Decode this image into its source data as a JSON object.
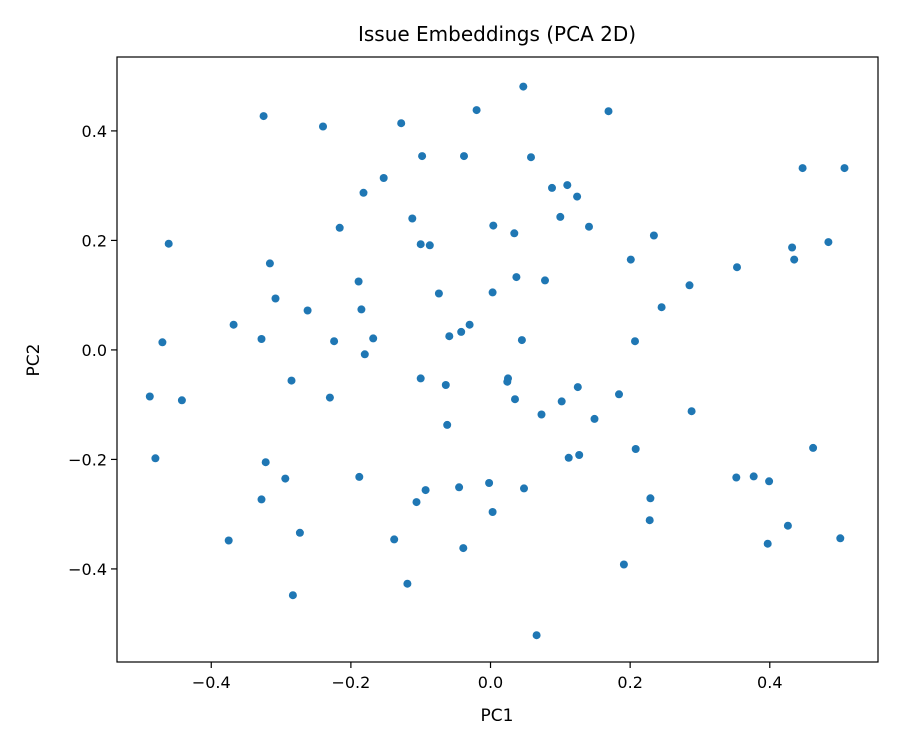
{
  "chart_data": {
    "type": "scatter",
    "title": "Issue Embeddings (PCA 2D)",
    "xlabel": "PC1",
    "ylabel": "PC2",
    "xlim": [
      -0.535,
      0.555
    ],
    "ylim": [
      -0.57,
      0.535
    ],
    "x_ticks": [
      -0.4,
      -0.2,
      0.0,
      0.2,
      0.4
    ],
    "y_ticks": [
      -0.4,
      -0.2,
      0.0,
      0.2,
      0.4
    ],
    "x_tick_labels": [
      "−0.4",
      "−0.2",
      "0.0",
      "0.2",
      "0.4"
    ],
    "y_tick_labels": [
      "−0.4",
      "−0.2",
      "0.0",
      "0.2",
      "0.4"
    ],
    "grid": false,
    "legend": "none",
    "marker_color": "#1f77b4",
    "points": [
      [
        0.047,
        0.481
      ],
      [
        -0.02,
        0.438
      ],
      [
        0.169,
        0.436
      ],
      [
        -0.325,
        0.427
      ],
      [
        -0.24,
        0.408
      ],
      [
        -0.128,
        0.414
      ],
      [
        -0.098,
        0.354
      ],
      [
        -0.038,
        0.354
      ],
      [
        0.058,
        0.352
      ],
      [
        0.447,
        0.332
      ],
      [
        0.507,
        0.332
      ],
      [
        -0.153,
        0.314
      ],
      [
        -0.182,
        0.287
      ],
      [
        0.088,
        0.296
      ],
      [
        0.11,
        0.301
      ],
      [
        0.124,
        0.28
      ],
      [
        -0.112,
        0.24
      ],
      [
        0.1,
        0.243
      ],
      [
        0.141,
        0.225
      ],
      [
        -0.216,
        0.223
      ],
      [
        0.004,
        0.227
      ],
      [
        0.034,
        0.213
      ],
      [
        0.234,
        0.209
      ],
      [
        -0.461,
        0.194
      ],
      [
        -0.1,
        0.193
      ],
      [
        -0.087,
        0.191
      ],
      [
        0.432,
        0.187
      ],
      [
        0.484,
        0.197
      ],
      [
        -0.316,
        0.158
      ],
      [
        0.201,
        0.165
      ],
      [
        0.435,
        0.165
      ],
      [
        0.353,
        0.151
      ],
      [
        -0.189,
        0.125
      ],
      [
        0.037,
        0.133
      ],
      [
        0.078,
        0.127
      ],
      [
        0.285,
        0.118
      ],
      [
        -0.074,
        0.103
      ],
      [
        0.003,
        0.105
      ],
      [
        -0.308,
        0.094
      ],
      [
        -0.262,
        0.072
      ],
      [
        -0.185,
        0.074
      ],
      [
        0.245,
        0.078
      ],
      [
        -0.368,
        0.046
      ],
      [
        -0.03,
        0.046
      ],
      [
        -0.042,
        0.033
      ],
      [
        -0.059,
        0.025
      ],
      [
        -0.328,
        0.02
      ],
      [
        -0.224,
        0.016
      ],
      [
        -0.168,
        0.021
      ],
      [
        0.045,
        0.018
      ],
      [
        0.207,
        0.016
      ],
      [
        -0.47,
        0.014
      ],
      [
        -0.18,
        -0.008
      ],
      [
        -0.1,
        -0.052
      ],
      [
        -0.285,
        -0.056
      ],
      [
        -0.064,
        -0.064
      ],
      [
        0.025,
        -0.052
      ],
      [
        0.024,
        -0.058
      ],
      [
        0.125,
        -0.068
      ],
      [
        0.184,
        -0.081
      ],
      [
        -0.488,
        -0.085
      ],
      [
        -0.23,
        -0.087
      ],
      [
        0.035,
        -0.09
      ],
      [
        -0.442,
        -0.092
      ],
      [
        0.102,
        -0.094
      ],
      [
        0.288,
        -0.112
      ],
      [
        0.073,
        -0.118
      ],
      [
        0.149,
        -0.126
      ],
      [
        -0.062,
        -0.137
      ],
      [
        0.208,
        -0.181
      ],
      [
        0.462,
        -0.179
      ],
      [
        0.112,
        -0.197
      ],
      [
        0.127,
        -0.192
      ],
      [
        -0.48,
        -0.198
      ],
      [
        -0.322,
        -0.205
      ],
      [
        -0.188,
        -0.232
      ],
      [
        -0.294,
        -0.235
      ],
      [
        0.352,
        -0.233
      ],
      [
        0.377,
        -0.231
      ],
      [
        0.399,
        -0.24
      ],
      [
        -0.002,
        -0.243
      ],
      [
        -0.045,
        -0.251
      ],
      [
        0.048,
        -0.253
      ],
      [
        -0.093,
        -0.256
      ],
      [
        -0.106,
        -0.278
      ],
      [
        -0.328,
        -0.273
      ],
      [
        0.229,
        -0.271
      ],
      [
        0.003,
        -0.296
      ],
      [
        0.228,
        -0.311
      ],
      [
        0.426,
        -0.321
      ],
      [
        -0.273,
        -0.334
      ],
      [
        -0.138,
        -0.346
      ],
      [
        -0.375,
        -0.348
      ],
      [
        0.397,
        -0.354
      ],
      [
        0.501,
        -0.344
      ],
      [
        -0.039,
        -0.362
      ],
      [
        0.191,
        -0.392
      ],
      [
        -0.119,
        -0.427
      ],
      [
        -0.283,
        -0.448
      ],
      [
        0.066,
        -0.521
      ]
    ]
  }
}
